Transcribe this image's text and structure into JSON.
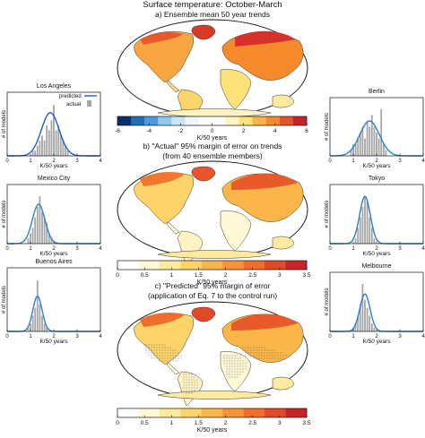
{
  "figure": {
    "title": "Surface temperature: October-March",
    "panel_a": "a) Ensemble mean 50 year trends",
    "panel_b_line1": "b) \"Actual\" 95% margin of error on trends",
    "panel_b_line2": "(from 40 ensemble members)",
    "panel_c_line1": "c) \"Predicted\" 95% margin of error",
    "panel_c_line2": "(application of Eq. 7 to the control run)",
    "colorbar_unit": "K/50 years"
  },
  "colorbars": [
    {
      "id": "a",
      "ticks": [
        "-6",
        "-4",
        "-2",
        "0",
        "2",
        "4",
        "6"
      ],
      "colors": [
        "#08306b",
        "#1f6fb5",
        "#4a9be0",
        "#8ec9ef",
        "#c8e6f7",
        "#eef7fc",
        "#ffffff",
        "#ffffff",
        "#fff5c0",
        "#fde27a",
        "#fbb44a",
        "#f58a2d",
        "#e6532a",
        "#c8202a"
      ]
    },
    {
      "id": "b",
      "ticks": [
        "0",
        "0.5",
        "1",
        "1.5",
        "2",
        "2.5",
        "3",
        "3.5"
      ],
      "colors": [
        "#ffffff",
        "#fff8d6",
        "#fdea9e",
        "#fcd46a",
        "#fbb64a",
        "#f7943a",
        "#ef6e2e",
        "#e04a28",
        "#c8232a"
      ]
    },
    {
      "id": "c",
      "ticks": [
        "0",
        "0.5",
        "1",
        "1.5",
        "2",
        "2.5",
        "3",
        "3.5"
      ],
      "colors": [
        "#ffffff",
        "#fff8d6",
        "#fdea9e",
        "#fcd46a",
        "#fbb64a",
        "#f7943a",
        "#ef6e2e",
        "#e04a28",
        "#c8232a"
      ]
    }
  ],
  "colors": {
    "predicted": "#1f5fc8",
    "predicted_alt": "#2b7fd0",
    "actual": "#a6a6a6"
  },
  "chart_data": [
    {
      "type": "bar",
      "title": "Los Angeles",
      "xlabel": "K/50 years",
      "ylabel": "# of models",
      "xlim": [
        0,
        4
      ],
      "xticks": [
        "0",
        "1",
        "2",
        "3",
        "4"
      ],
      "legend": {
        "predicted": "predicted",
        "actual": "actual"
      },
      "actual": {
        "bin_centers": [
          1.1,
          1.2,
          1.3,
          1.4,
          1.5,
          1.6,
          1.7,
          1.8,
          1.9,
          2.0,
          2.1,
          2.2,
          2.3,
          2.4,
          2.5,
          2.6
        ],
        "heights": [
          1,
          1,
          2,
          3,
          4,
          3,
          6,
          5,
          7,
          10,
          5,
          6,
          4,
          3,
          2,
          1
        ]
      },
      "predicted": {
        "mean": 1.85,
        "sd": 0.38,
        "peak": 8.5
      }
    },
    {
      "type": "bar",
      "title": "Mexico City",
      "xlabel": "K/50 years",
      "ylabel": "# of models",
      "xlim": [
        0,
        4
      ],
      "xticks": [
        "0",
        "1",
        "2",
        "3",
        "4"
      ],
      "actual": {
        "bin_centers": [
          0.9,
          1.0,
          1.1,
          1.2,
          1.3,
          1.4,
          1.5,
          1.6,
          1.7,
          1.8,
          1.9
        ],
        "heights": [
          1,
          2,
          3,
          5,
          7,
          9,
          6,
          5,
          4,
          2,
          1
        ]
      },
      "predicted": {
        "mean": 1.35,
        "sd": 0.27,
        "peak": 7.5
      }
    },
    {
      "type": "bar",
      "title": "Buenos Aires",
      "xlabel": "K/50 years",
      "ylabel": "# of models",
      "xlim": [
        0,
        4
      ],
      "xticks": [
        "0",
        "1",
        "2",
        "3",
        "4"
      ],
      "actual": {
        "bin_centers": [
          0.9,
          1.0,
          1.1,
          1.2,
          1.3,
          1.4,
          1.5,
          1.6,
          1.7
        ],
        "heights": [
          1,
          2,
          4,
          6,
          13,
          7,
          4,
          2,
          1
        ]
      },
      "predicted": {
        "mean": 1.3,
        "sd": 0.2,
        "peak": 9
      }
    },
    {
      "type": "bar",
      "title": "Berlin",
      "xlabel": "K/50 years",
      "ylabel": "# of models",
      "xlim": [
        0,
        4
      ],
      "xticks": [
        "0",
        "1",
        "2",
        "3",
        "4"
      ],
      "actual": {
        "bin_centers": [
          0.9,
          1.0,
          1.1,
          1.2,
          1.3,
          1.4,
          1.5,
          1.6,
          1.7,
          1.8,
          1.9,
          2.0,
          2.1,
          2.2,
          2.3,
          2.4
        ],
        "heights": [
          1,
          2,
          2,
          3,
          4,
          5,
          3,
          6,
          5,
          7,
          5,
          4,
          3,
          8,
          2,
          1
        ]
      },
      "predicted": {
        "mean": 1.7,
        "sd": 0.42,
        "peak": 6
      }
    },
    {
      "type": "bar",
      "title": "Tokyo",
      "xlabel": "K/50 years",
      "ylabel": "# of models",
      "xlim": [
        0,
        4
      ],
      "xticks": [
        "0",
        "1",
        "2",
        "3",
        "4"
      ],
      "actual": {
        "bin_centers": [
          1.1,
          1.2,
          1.3,
          1.4,
          1.5,
          1.6,
          1.7,
          1.8,
          1.9
        ],
        "heights": [
          1,
          3,
          5,
          7,
          9,
          8,
          5,
          3,
          1
        ]
      },
      "predicted": {
        "mean": 1.5,
        "sd": 0.23,
        "peak": 9
      }
    },
    {
      "type": "bar",
      "title": "Melbourne",
      "xlabel": "K/50 years",
      "ylabel": "# of models",
      "xlim": [
        0,
        4
      ],
      "xticks": [
        "0",
        "1",
        "2",
        "3",
        "4"
      ],
      "actual": {
        "bin_centers": [
          1.0,
          1.1,
          1.2,
          1.3,
          1.4,
          1.5,
          1.6,
          1.7,
          1.8,
          1.9
        ],
        "heights": [
          1,
          2,
          4,
          7,
          12,
          8,
          6,
          4,
          2,
          1
        ]
      },
      "predicted": {
        "mean": 1.5,
        "sd": 0.22,
        "peak": 9.5
      }
    }
  ]
}
